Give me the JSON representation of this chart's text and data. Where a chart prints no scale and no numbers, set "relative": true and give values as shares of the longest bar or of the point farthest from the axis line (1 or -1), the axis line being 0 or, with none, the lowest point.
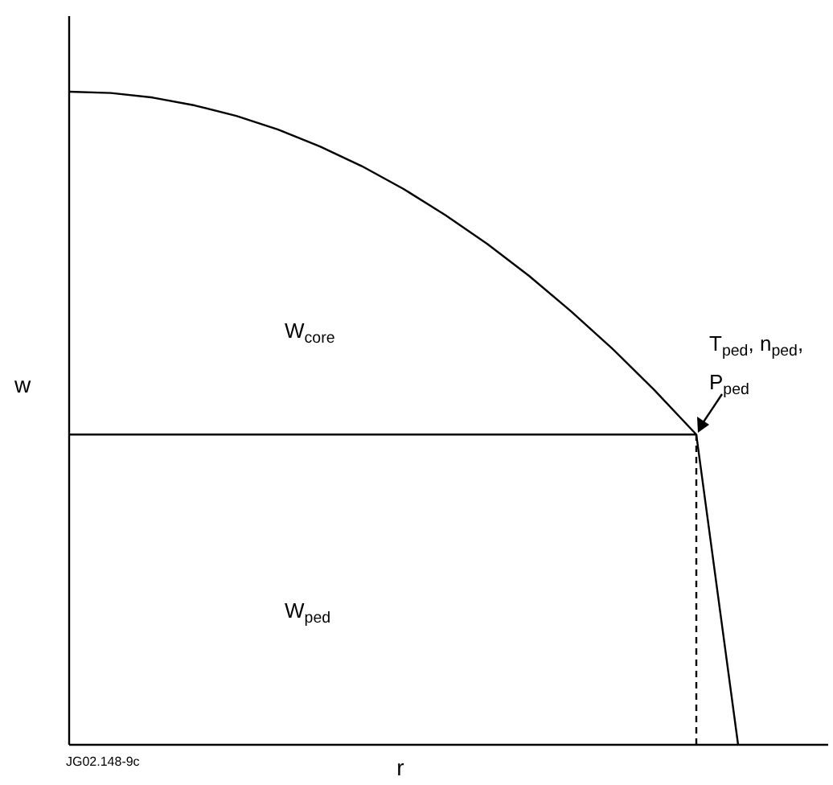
{
  "chart_data": {
    "type": "line",
    "relative": true,
    "xlabel": "r",
    "ylabel": "w",
    "categories": [
      null,
      null,
      null,
      null,
      null,
      null,
      null,
      null,
      null,
      null,
      null,
      null,
      null,
      null,
      null,
      null,
      null,
      null,
      null
    ],
    "series": [
      {
        "color": "#000000",
        "line_style": "solid",
        "values": [
          1,
          0.998,
          0.991,
          0.979,
          0.963,
          0.942,
          0.916,
          0.886,
          0.851,
          0.811,
          0.767,
          0.718,
          0.664,
          0.606,
          0.543,
          0.475,
          0,
          null,
          null
        ]
      },
      {
        "color": "#000000",
        "line_style": "solid",
        "values": [
          0.475,
          0.475,
          0.475,
          0.475,
          0.475,
          0.475,
          0.475,
          0.475,
          0.475,
          0.475,
          0.475,
          0.475,
          0.475,
          0.475,
          0.475,
          0.475,
          null,
          null,
          null
        ]
      }
    ],
    "annotations": [
      "W$_{core}$",
      "W$_{ped}$",
      "T$_{ped}$, n$_{ped}$, P$_{ped}$",
      "JG02.148-9c"
    ]
  }
}
